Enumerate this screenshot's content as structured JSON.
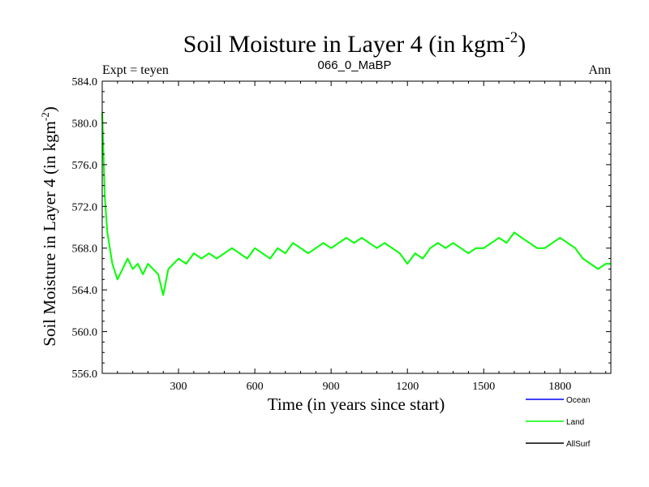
{
  "chart_data": {
    "type": "line",
    "title": "Soil Moisture in Layer 4 (in kgm",
    "title_sup": "-2",
    "title_close": ")",
    "subtitle_left": "Expt = teyen",
    "subtitle_center": "066_0_MaBP",
    "subtitle_right": "Ann",
    "xlabel": "Time (in years since start)",
    "ylabel": "Soil Moisture in Layer 4 (in kgm",
    "ylabel_sup": "-2",
    "ylabel_close": ")",
    "xlim": [
      0,
      2000
    ],
    "ylim": [
      556.0,
      584.0
    ],
    "x_ticks": [
      300,
      600,
      900,
      1200,
      1500,
      1800
    ],
    "x_tick_labels": [
      "300",
      "600",
      "900",
      "1200",
      "1500",
      "1800"
    ],
    "y_ticks": [
      556,
      560,
      564,
      568,
      572,
      576,
      580,
      584
    ],
    "y_tick_labels": [
      "556.0",
      "560.0",
      "564.0",
      "568.0",
      "572.0",
      "576.0",
      "580.0",
      "584.0"
    ],
    "legend": [
      {
        "name": "Ocean",
        "color": "#0000ff"
      },
      {
        "name": "Land",
        "color": "#00ff00"
      },
      {
        "name": "AllSurf",
        "color": "#000000"
      }
    ],
    "series": [
      {
        "name": "Land",
        "color": "#00ff00",
        "x": [
          0,
          10,
          20,
          40,
          60,
          80,
          100,
          120,
          140,
          160,
          180,
          200,
          220,
          240,
          260,
          280,
          300,
          330,
          360,
          390,
          420,
          450,
          480,
          510,
          540,
          570,
          600,
          630,
          660,
          690,
          720,
          750,
          780,
          810,
          840,
          870,
          900,
          930,
          960,
          990,
          1020,
          1050,
          1080,
          1110,
          1140,
          1170,
          1200,
          1230,
          1260,
          1290,
          1320,
          1350,
          1380,
          1410,
          1440,
          1470,
          1500,
          1530,
          1560,
          1590,
          1620,
          1650,
          1680,
          1710,
          1740,
          1770,
          1800,
          1830,
          1860,
          1890,
          1920,
          1950,
          1980,
          2000
        ],
        "values": [
          581.0,
          573.0,
          569.5,
          566.5,
          565.0,
          566.0,
          567.0,
          566.0,
          566.5,
          565.5,
          566.5,
          566.0,
          565.5,
          563.5,
          566.0,
          566.5,
          567.0,
          566.5,
          567.5,
          567.0,
          567.5,
          567.0,
          567.5,
          568.0,
          567.5,
          567.0,
          568.0,
          567.5,
          567.0,
          568.0,
          567.5,
          568.5,
          568.0,
          567.5,
          568.0,
          568.5,
          568.0,
          568.5,
          569.0,
          568.5,
          569.0,
          568.5,
          568.0,
          568.5,
          568.0,
          567.5,
          566.5,
          567.5,
          567.0,
          568.0,
          568.5,
          568.0,
          568.5,
          568.0,
          567.5,
          568.0,
          568.0,
          568.5,
          569.0,
          568.5,
          569.5,
          569.0,
          568.5,
          568.0,
          568.0,
          568.5,
          569.0,
          568.5,
          568.0,
          567.0,
          566.5,
          566.0,
          566.5,
          566.5
        ]
      }
    ]
  }
}
